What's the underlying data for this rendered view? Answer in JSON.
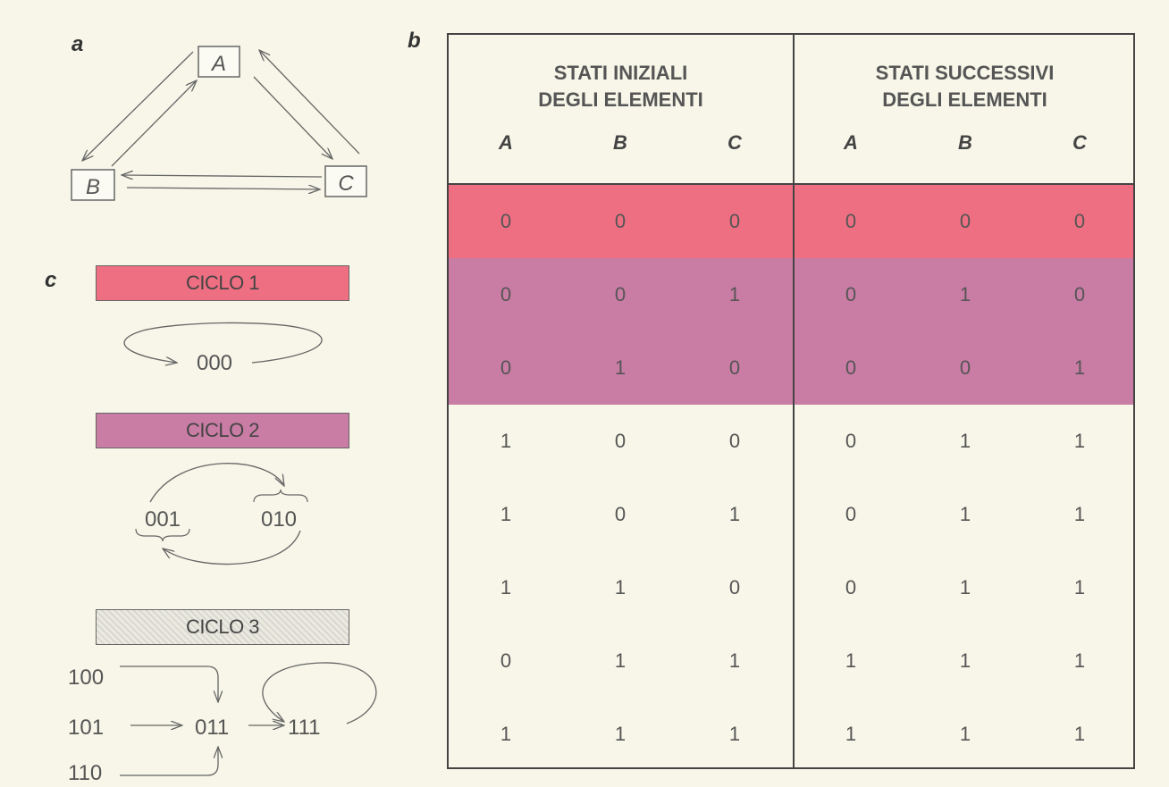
{
  "panel_labels": {
    "a": "a",
    "b": "b",
    "c": "c"
  },
  "diagram_a": {
    "nodes": {
      "A": "A",
      "B": "B",
      "C": "C"
    }
  },
  "table": {
    "group_initial": [
      "STATI INIZIALI",
      "DEGLI ELEMENTI"
    ],
    "group_successive": [
      "STATI SUCCESSIVI",
      "DEGLI ELEMENTI"
    ],
    "columns": [
      "A",
      "B",
      "C",
      "A",
      "B",
      "C"
    ],
    "rows": [
      {
        "initial": [
          "0",
          "0",
          "0"
        ],
        "next": [
          "0",
          "0",
          "0"
        ],
        "cycle": 1
      },
      {
        "initial": [
          "0",
          "0",
          "1"
        ],
        "next": [
          "0",
          "1",
          "0"
        ],
        "cycle": 2
      },
      {
        "initial": [
          "0",
          "1",
          "0"
        ],
        "next": [
          "0",
          "0",
          "1"
        ],
        "cycle": 2
      },
      {
        "initial": [
          "1",
          "0",
          "0"
        ],
        "next": [
          "0",
          "1",
          "1"
        ],
        "cycle": 3
      },
      {
        "initial": [
          "1",
          "0",
          "1"
        ],
        "next": [
          "0",
          "1",
          "1"
        ],
        "cycle": 3
      },
      {
        "initial": [
          "1",
          "1",
          "0"
        ],
        "next": [
          "0",
          "1",
          "1"
        ],
        "cycle": 3
      },
      {
        "initial": [
          "0",
          "1",
          "1"
        ],
        "next": [
          "1",
          "1",
          "1"
        ],
        "cycle": 3
      },
      {
        "initial": [
          "1",
          "1",
          "1"
        ],
        "next": [
          "1",
          "1",
          "1"
        ],
        "cycle": 3
      }
    ]
  },
  "cycles": {
    "cycle1": {
      "label": "CICLO 1",
      "states": [
        "000"
      ]
    },
    "cycle2": {
      "label": "CICLO 2",
      "states": [
        "001",
        "010"
      ]
    },
    "cycle3": {
      "label": "CICLO 3",
      "states": [
        "100",
        "101",
        "110",
        "011",
        "111"
      ]
    }
  },
  "colors": {
    "cycle1": "#ef6f82",
    "cycle2": "#c97ca4",
    "cycle3": "#e2e0d6",
    "background": "#f7f6e8",
    "line": "#555555"
  }
}
